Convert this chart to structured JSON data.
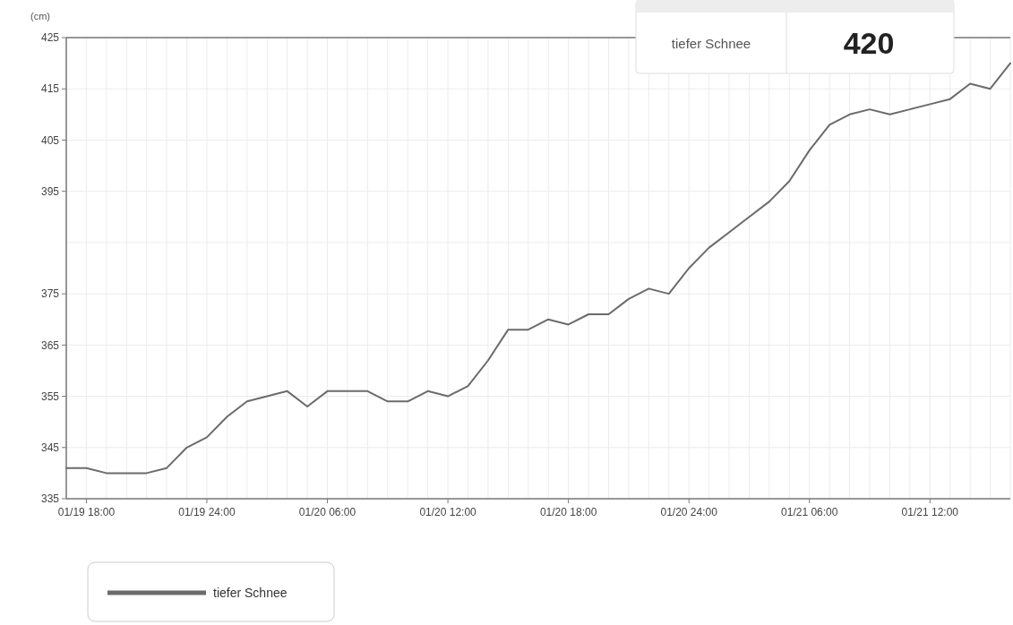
{
  "chart_data": {
    "type": "line",
    "ylabel": "(cm)",
    "categories": [
      null,
      "01/19 18:00",
      null,
      null,
      null,
      null,
      null,
      "01/19 24:00",
      null,
      null,
      null,
      null,
      null,
      "01/20 06:00",
      null,
      null,
      null,
      null,
      null,
      "01/20 12:00",
      null,
      null,
      null,
      null,
      null,
      "01/20 18:00",
      null,
      null,
      null,
      null,
      null,
      "01/20 24:00",
      null,
      null,
      null,
      null,
      null,
      "01/21 06:00",
      null,
      null,
      null,
      null,
      null,
      "01/21 12:00",
      null,
      null,
      null,
      null
    ],
    "series": [
      {
        "name": "tiefer Schnee",
        "color": "#6b6b6b",
        "values": [
          341,
          341,
          340,
          340,
          340,
          341,
          345,
          347,
          351,
          354,
          355,
          356,
          353,
          356,
          356,
          356,
          354,
          354,
          356,
          355,
          357,
          362,
          368,
          368,
          370,
          369,
          371,
          371,
          374,
          376,
          375,
          380,
          384,
          387,
          390,
          393,
          397,
          403,
          408,
          410,
          411,
          410,
          411,
          412,
          413,
          416,
          415,
          420
        ]
      }
    ],
    "ylim": [
      335,
      425
    ],
    "yticks": [
      335,
      345,
      355,
      365,
      375,
      {
        "value": 385,
        "label": null
      },
      395,
      405,
      415,
      425
    ],
    "annotations": [
      "tiefer Schnee",
      "420"
    ],
    "grid": true,
    "legend": "bottom left",
    "marker": "none",
    "line_style": "solid"
  }
}
